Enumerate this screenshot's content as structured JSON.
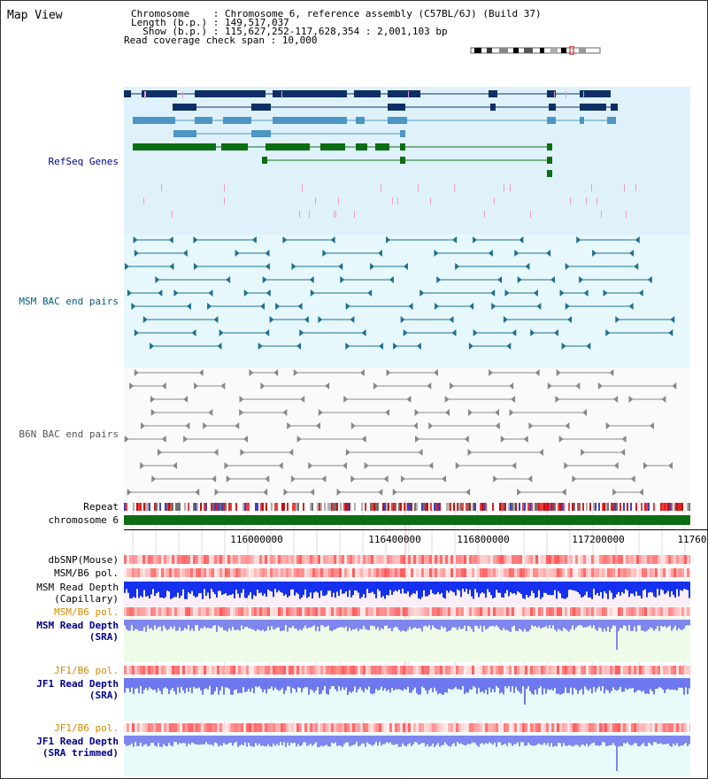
{
  "title": "Map View",
  "header": {
    "chromosome_label": "Chromosome    : Chromosome 6, reference assembly (C57BL/6J) (Build 37)",
    "length_label": "Length (b.p.) : 149,517,037",
    "show_label": "  Show (b.p.) : 115,627,252-117,628,354 : 2,001,103 bp",
    "coverage_label": "Read coverage check span : 10,000"
  },
  "tracks": {
    "refseq": "RefSeq Genes",
    "msm_bac": "MSM BAC end pairs",
    "b6n_bac": "B6N BAC end pairs",
    "repeat": "Repeat",
    "chromosome": "chromosome 6",
    "dbsnp": "dbSNP(Mouse)",
    "msm_b6_pol": "MSM/B6 pol.",
    "msm_depth_cap_1": "MSM Read Depth",
    "msm_depth_cap_2": "(Capillary)",
    "msm_b6_pol2": "MSM/B6 pol.",
    "msm_depth_sra_1": "MSM Read Depth",
    "msm_depth_sra_2": "(SRA)",
    "jf1_b6_pol": "JF1/B6 pol.",
    "jf1_depth_sra_1": "JF1 Read Depth",
    "jf1_depth_sra_2": "(SRA)",
    "jf1_b6_pol2": "JF1/B6 pol.",
    "jf1_depth_trim_1": "JF1 Read Depth",
    "jf1_depth_trim_2": "(SRA trimmed)"
  },
  "axis": {
    "ticks": [
      "116000000",
      "116400000",
      "116800000",
      "117200000",
      "11760"
    ]
  },
  "colors": {
    "refseq_bg": "#dff2fb",
    "msm_bg": "#e6f8fb",
    "b6n_bg": "#f8f8f8",
    "gene_dark": "#0e2f66",
    "gene_mid": "#4d95c3",
    "gene_green": "#0c6e12",
    "msm_line": "#1f6f92",
    "b6n_line": "#888888",
    "label_blue": "#00008b",
    "label_teal": "#006080",
    "label_orange": "#d88a00"
  }
}
